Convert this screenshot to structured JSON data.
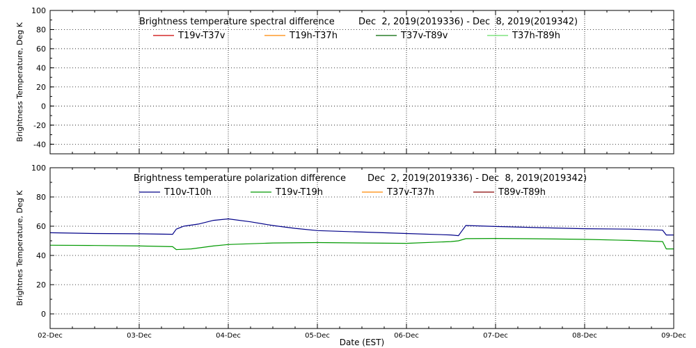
{
  "chart_data": [
    {
      "type": "line",
      "title": "Brightness temperature spectral difference",
      "date_range": "Dec  2, 2019(2019336) - Dec  8, 2019(2019342)",
      "ylabel": "Brightness Temperature, Deg K",
      "xlabel": "",
      "xlim": [
        "2019-12-02",
        "2019-12-09"
      ],
      "ylim": [
        -50,
        100
      ],
      "yticks": [
        "-40",
        "-20",
        "0",
        "20",
        "40",
        "60",
        "80",
        "100"
      ],
      "xticks": [],
      "grid": true,
      "legend_position": "top",
      "series": [
        {
          "name": "T19v-T37v",
          "color": "#cc0000",
          "x": [],
          "y": []
        },
        {
          "name": "T19h-T37h",
          "color": "#ff8800",
          "x": [],
          "y": []
        },
        {
          "name": "T37v-T89v",
          "color": "#006600",
          "x": [],
          "y": []
        },
        {
          "name": "T37h-T89h",
          "color": "#66dd66",
          "x": [],
          "y": []
        }
      ]
    },
    {
      "type": "line",
      "title": "Brightness temperature polarization difference",
      "date_range": "Dec  2, 2019(2019336) - Dec  8, 2019(2019342)",
      "ylabel": "Brightnes Temperature, Deg K",
      "xlabel": "Date (EST)",
      "xlim": [
        "2019-12-02",
        "2019-12-09"
      ],
      "ylim": [
        -10,
        100
      ],
      "yticks": [
        "0",
        "20",
        "40",
        "60",
        "80",
        "100"
      ],
      "xticks": [
        "02-Dec",
        "03-Dec",
        "04-Dec",
        "05-Dec",
        "06-Dec",
        "07-Dec",
        "08-Dec",
        "09-Dec"
      ],
      "grid": true,
      "legend_position": "top",
      "series": [
        {
          "name": "T10v-T10h",
          "color": "#000088",
          "x": [
            "2019-12-02 00:00",
            "2019-12-02 12:00",
            "2019-12-03 00:00",
            "2019-12-03 09:00",
            "2019-12-03 10:00",
            "2019-12-03 12:00",
            "2019-12-03 16:00",
            "2019-12-03 20:00",
            "2019-12-04 00:00",
            "2019-12-04 06:00",
            "2019-12-04 12:00",
            "2019-12-04 18:00",
            "2019-12-05 00:00",
            "2019-12-05 12:00",
            "2019-12-06 00:00",
            "2019-12-06 12:00",
            "2019-12-06 14:00",
            "2019-12-06 15:00",
            "2019-12-06 16:00",
            "2019-12-07 00:00",
            "2019-12-07 12:00",
            "2019-12-08 00:00",
            "2019-12-08 12:00",
            "2019-12-08 21:00",
            "2019-12-08 22:00",
            "2019-12-09 00:00"
          ],
          "y": [
            55.5,
            55.0,
            54.8,
            54.5,
            58.0,
            60.0,
            61.5,
            64.0,
            65.0,
            63.0,
            60.5,
            58.5,
            57.0,
            56.0,
            55.0,
            54.0,
            53.5,
            57.0,
            60.5,
            59.8,
            59.0,
            58.3,
            58.0,
            57.3,
            54.0,
            54.0
          ]
        },
        {
          "name": "T19v-T19h",
          "color": "#009900",
          "x": [
            "2019-12-02 00:00",
            "2019-12-02 12:00",
            "2019-12-03 00:00",
            "2019-12-03 09:00",
            "2019-12-03 10:00",
            "2019-12-03 14:00",
            "2019-12-03 20:00",
            "2019-12-04 00:00",
            "2019-12-04 12:00",
            "2019-12-05 00:00",
            "2019-12-05 12:00",
            "2019-12-06 00:00",
            "2019-12-06 12:00",
            "2019-12-06 14:00",
            "2019-12-06 16:00",
            "2019-12-07 00:00",
            "2019-12-07 12:00",
            "2019-12-08 00:00",
            "2019-12-08 12:00",
            "2019-12-08 21:00",
            "2019-12-08 22:00",
            "2019-12-09 00:00"
          ],
          "y": [
            47.0,
            46.8,
            46.5,
            46.0,
            44.0,
            44.5,
            46.5,
            47.5,
            48.5,
            48.8,
            48.5,
            48.3,
            49.5,
            50.0,
            51.5,
            51.6,
            51.4,
            51.0,
            50.3,
            49.5,
            44.5,
            44.5
          ]
        },
        {
          "name": "T37v-T37h",
          "color": "#ff8800",
          "x": [],
          "y": []
        },
        {
          "name": "T89v-T89h",
          "color": "#880000",
          "x": [],
          "y": []
        }
      ]
    }
  ]
}
